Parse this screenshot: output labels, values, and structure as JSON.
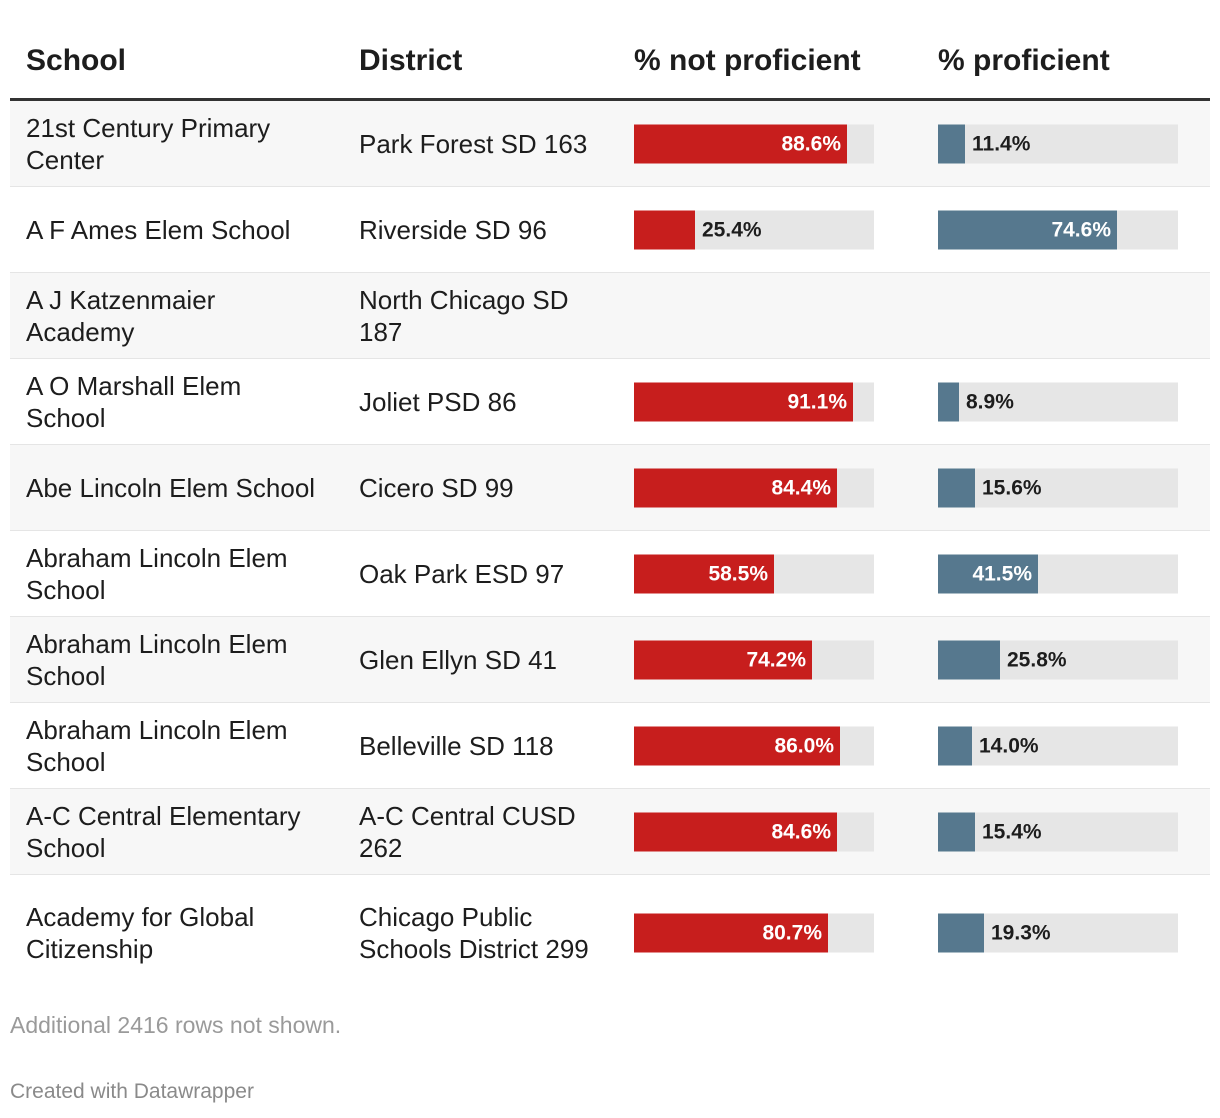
{
  "headers": {
    "school": "School",
    "district": "District",
    "not_proficient": "% not proficient",
    "proficient": "% proficient"
  },
  "colors": {
    "not_proficient": "#c71e1d",
    "proficient": "#56788e",
    "track": "#e6e6e6"
  },
  "chart_data": {
    "type": "table",
    "columns": [
      "School",
      "District",
      "% not proficient",
      "% proficient"
    ],
    "rows": [
      {
        "school": "21st Century Primary Center",
        "district": "Park Forest SD 163",
        "not_proficient": 88.6,
        "not_proficient_label": "88.6%",
        "proficient": 11.4,
        "proficient_label": "11.4%"
      },
      {
        "school": "A F Ames Elem School",
        "district": "Riverside SD 96",
        "not_proficient": 25.4,
        "not_proficient_label": "25.4%",
        "proficient": 74.6,
        "proficient_label": "74.6%"
      },
      {
        "school": "A J Katzenmaier Academy",
        "district": "North Chicago SD 187",
        "not_proficient": null,
        "not_proficient_label": "",
        "proficient": null,
        "proficient_label": ""
      },
      {
        "school": "A O Marshall Elem School",
        "district": "Joliet PSD 86",
        "not_proficient": 91.1,
        "not_proficient_label": "91.1%",
        "proficient": 8.9,
        "proficient_label": "8.9%"
      },
      {
        "school": "Abe Lincoln Elem School",
        "district": "Cicero SD 99",
        "not_proficient": 84.4,
        "not_proficient_label": "84.4%",
        "proficient": 15.6,
        "proficient_label": "15.6%"
      },
      {
        "school": "Abraham Lincoln Elem School",
        "district": "Oak Park ESD 97",
        "not_proficient": 58.5,
        "not_proficient_label": "58.5%",
        "proficient": 41.5,
        "proficient_label": "41.5%"
      },
      {
        "school": "Abraham Lincoln Elem School",
        "district": "Glen Ellyn SD 41",
        "not_proficient": 74.2,
        "not_proficient_label": "74.2%",
        "proficient": 25.8,
        "proficient_label": "25.8%"
      },
      {
        "school": "Abraham Lincoln Elem School",
        "district": "Belleville SD 118",
        "not_proficient": 86.0,
        "not_proficient_label": "86.0%",
        "proficient": 14.0,
        "proficient_label": "14.0%"
      },
      {
        "school": "A-C Central Elementary School",
        "district": "A-C Central CUSD 262",
        "not_proficient": 84.6,
        "not_proficient_label": "84.6%",
        "proficient": 15.4,
        "proficient_label": "15.4%"
      },
      {
        "school": "Academy for Global Citizenship",
        "district": "Chicago Public Schools District 299",
        "not_proficient": 80.7,
        "not_proficient_label": "80.7%",
        "proficient": 19.3,
        "proficient_label": "19.3%"
      }
    ],
    "bar_max": 100
  },
  "footer": {
    "note": "Additional 2416 rows not shown.",
    "credit": "Created with Datawrapper"
  }
}
